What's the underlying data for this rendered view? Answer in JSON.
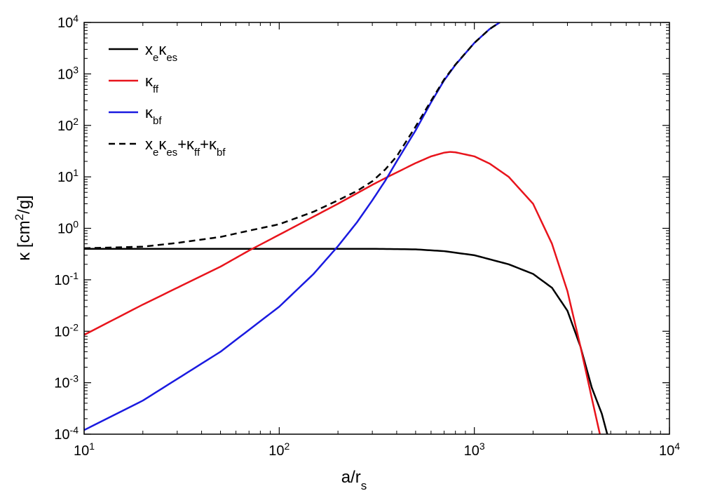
{
  "chart_data": {
    "type": "line",
    "scale": {
      "x": "log",
      "y": "log"
    },
    "xlim": [
      10,
      10000
    ],
    "ylim": [
      0.0001,
      10000
    ],
    "x_ticks": [
      {
        "value": 10,
        "base": "10",
        "exp": "1"
      },
      {
        "value": 100,
        "base": "10",
        "exp": "2"
      },
      {
        "value": 1000,
        "base": "10",
        "exp": "3"
      },
      {
        "value": 10000,
        "base": "10",
        "exp": "4"
      }
    ],
    "y_ticks": [
      {
        "value": 0.0001,
        "base": "10",
        "exp": "-4"
      },
      {
        "value": 0.001,
        "base": "10",
        "exp": "-3"
      },
      {
        "value": 0.01,
        "base": "10",
        "exp": "-2"
      },
      {
        "value": 0.1,
        "base": "10",
        "exp": "-1"
      },
      {
        "value": 1,
        "base": "10",
        "exp": "0"
      },
      {
        "value": 10,
        "base": "10",
        "exp": "1"
      },
      {
        "value": 100,
        "base": "10",
        "exp": "2"
      },
      {
        "value": 1000,
        "base": "10",
        "exp": "3"
      },
      {
        "value": 10000,
        "base": "10",
        "exp": "4"
      }
    ],
    "xlabel": {
      "main": "a/r",
      "sub": "s"
    },
    "ylabel": {
      "main": "κ [cm",
      "sup": "2",
      "tail": "/g]"
    },
    "legend_position": "top-left",
    "series": [
      {
        "id": "es",
        "label_parts": [
          [
            "x",
            ""
          ],
          [
            "e",
            "sub"
          ],
          [
            "κ",
            ""
          ],
          [
            "es",
            "sub"
          ]
        ],
        "color": "#000000",
        "dash": "solid",
        "points": [
          [
            10,
            0.4
          ],
          [
            100,
            0.4
          ],
          [
            300,
            0.4
          ],
          [
            500,
            0.39
          ],
          [
            700,
            0.36
          ],
          [
            1000,
            0.3
          ],
          [
            1500,
            0.2
          ],
          [
            2000,
            0.13
          ],
          [
            2500,
            0.07
          ],
          [
            3000,
            0.025
          ],
          [
            3500,
            0.005
          ],
          [
            4000,
            0.0008
          ],
          [
            4500,
            0.00025
          ],
          [
            4800,
            0.0001
          ]
        ]
      },
      {
        "id": "ff",
        "label_parts": [
          [
            "κ",
            ""
          ],
          [
            "ff",
            "sub"
          ]
        ],
        "color": "#e8141c",
        "dash": "solid",
        "points": [
          [
            10,
            0.0085
          ],
          [
            20,
            0.033
          ],
          [
            50,
            0.18
          ],
          [
            70,
            0.37
          ],
          [
            100,
            0.75
          ],
          [
            200,
            3.0
          ],
          [
            300,
            7.0
          ],
          [
            360,
            10.0
          ],
          [
            500,
            18.5
          ],
          [
            600,
            25.0
          ],
          [
            700,
            29.5
          ],
          [
            750,
            30.5
          ],
          [
            800,
            30.0
          ],
          [
            1000,
            25.0
          ],
          [
            1200,
            18.0
          ],
          [
            1500,
            10.0
          ],
          [
            2000,
            3.0
          ],
          [
            2500,
            0.5
          ],
          [
            3000,
            0.06
          ],
          [
            3500,
            0.005
          ],
          [
            4000,
            0.0005
          ],
          [
            4400,
            0.0001
          ]
        ]
      },
      {
        "id": "bf",
        "label_parts": [
          [
            "κ",
            ""
          ],
          [
            "bf",
            "sub"
          ]
        ],
        "color": "#1a1ae0",
        "dash": "solid",
        "points": [
          [
            10,
            0.00012
          ],
          [
            20,
            0.00045
          ],
          [
            50,
            0.004
          ],
          [
            100,
            0.03
          ],
          [
            150,
            0.13
          ],
          [
            200,
            0.45
          ],
          [
            250,
            1.3
          ],
          [
            300,
            3.5
          ],
          [
            350,
            8.5
          ],
          [
            400,
            20.0
          ],
          [
            500,
            80.0
          ],
          [
            600,
            280.0
          ],
          [
            700,
            750.0
          ],
          [
            800,
            1500.0
          ],
          [
            1000,
            4000.0
          ],
          [
            1200,
            7500.0
          ],
          [
            1350,
            10000.0
          ]
        ]
      },
      {
        "id": "total",
        "label_parts": [
          [
            "x",
            ""
          ],
          [
            "e",
            "sub"
          ],
          [
            "κ",
            ""
          ],
          [
            "es",
            "sub"
          ],
          [
            "+κ",
            ""
          ],
          [
            "ff",
            "sub"
          ],
          [
            "+κ",
            ""
          ],
          [
            "bf",
            "sub"
          ]
        ],
        "color": "#000000",
        "dash": "dashed",
        "points": [
          [
            10,
            0.41
          ],
          [
            20,
            0.44
          ],
          [
            30,
            0.52
          ],
          [
            50,
            0.68
          ],
          [
            70,
            0.9
          ],
          [
            100,
            1.2
          ],
          [
            150,
            2.1
          ],
          [
            200,
            3.5
          ],
          [
            250,
            5.3
          ],
          [
            300,
            8.2
          ],
          [
            350,
            14.0
          ],
          [
            400,
            25.0
          ],
          [
            500,
            95.0
          ],
          [
            600,
            300.0
          ],
          [
            700,
            780.0
          ],
          [
            800,
            1520.0
          ],
          [
            1000,
            4000.0
          ],
          [
            1200,
            7500.0
          ],
          [
            1350,
            10000.0
          ]
        ]
      }
    ]
  }
}
